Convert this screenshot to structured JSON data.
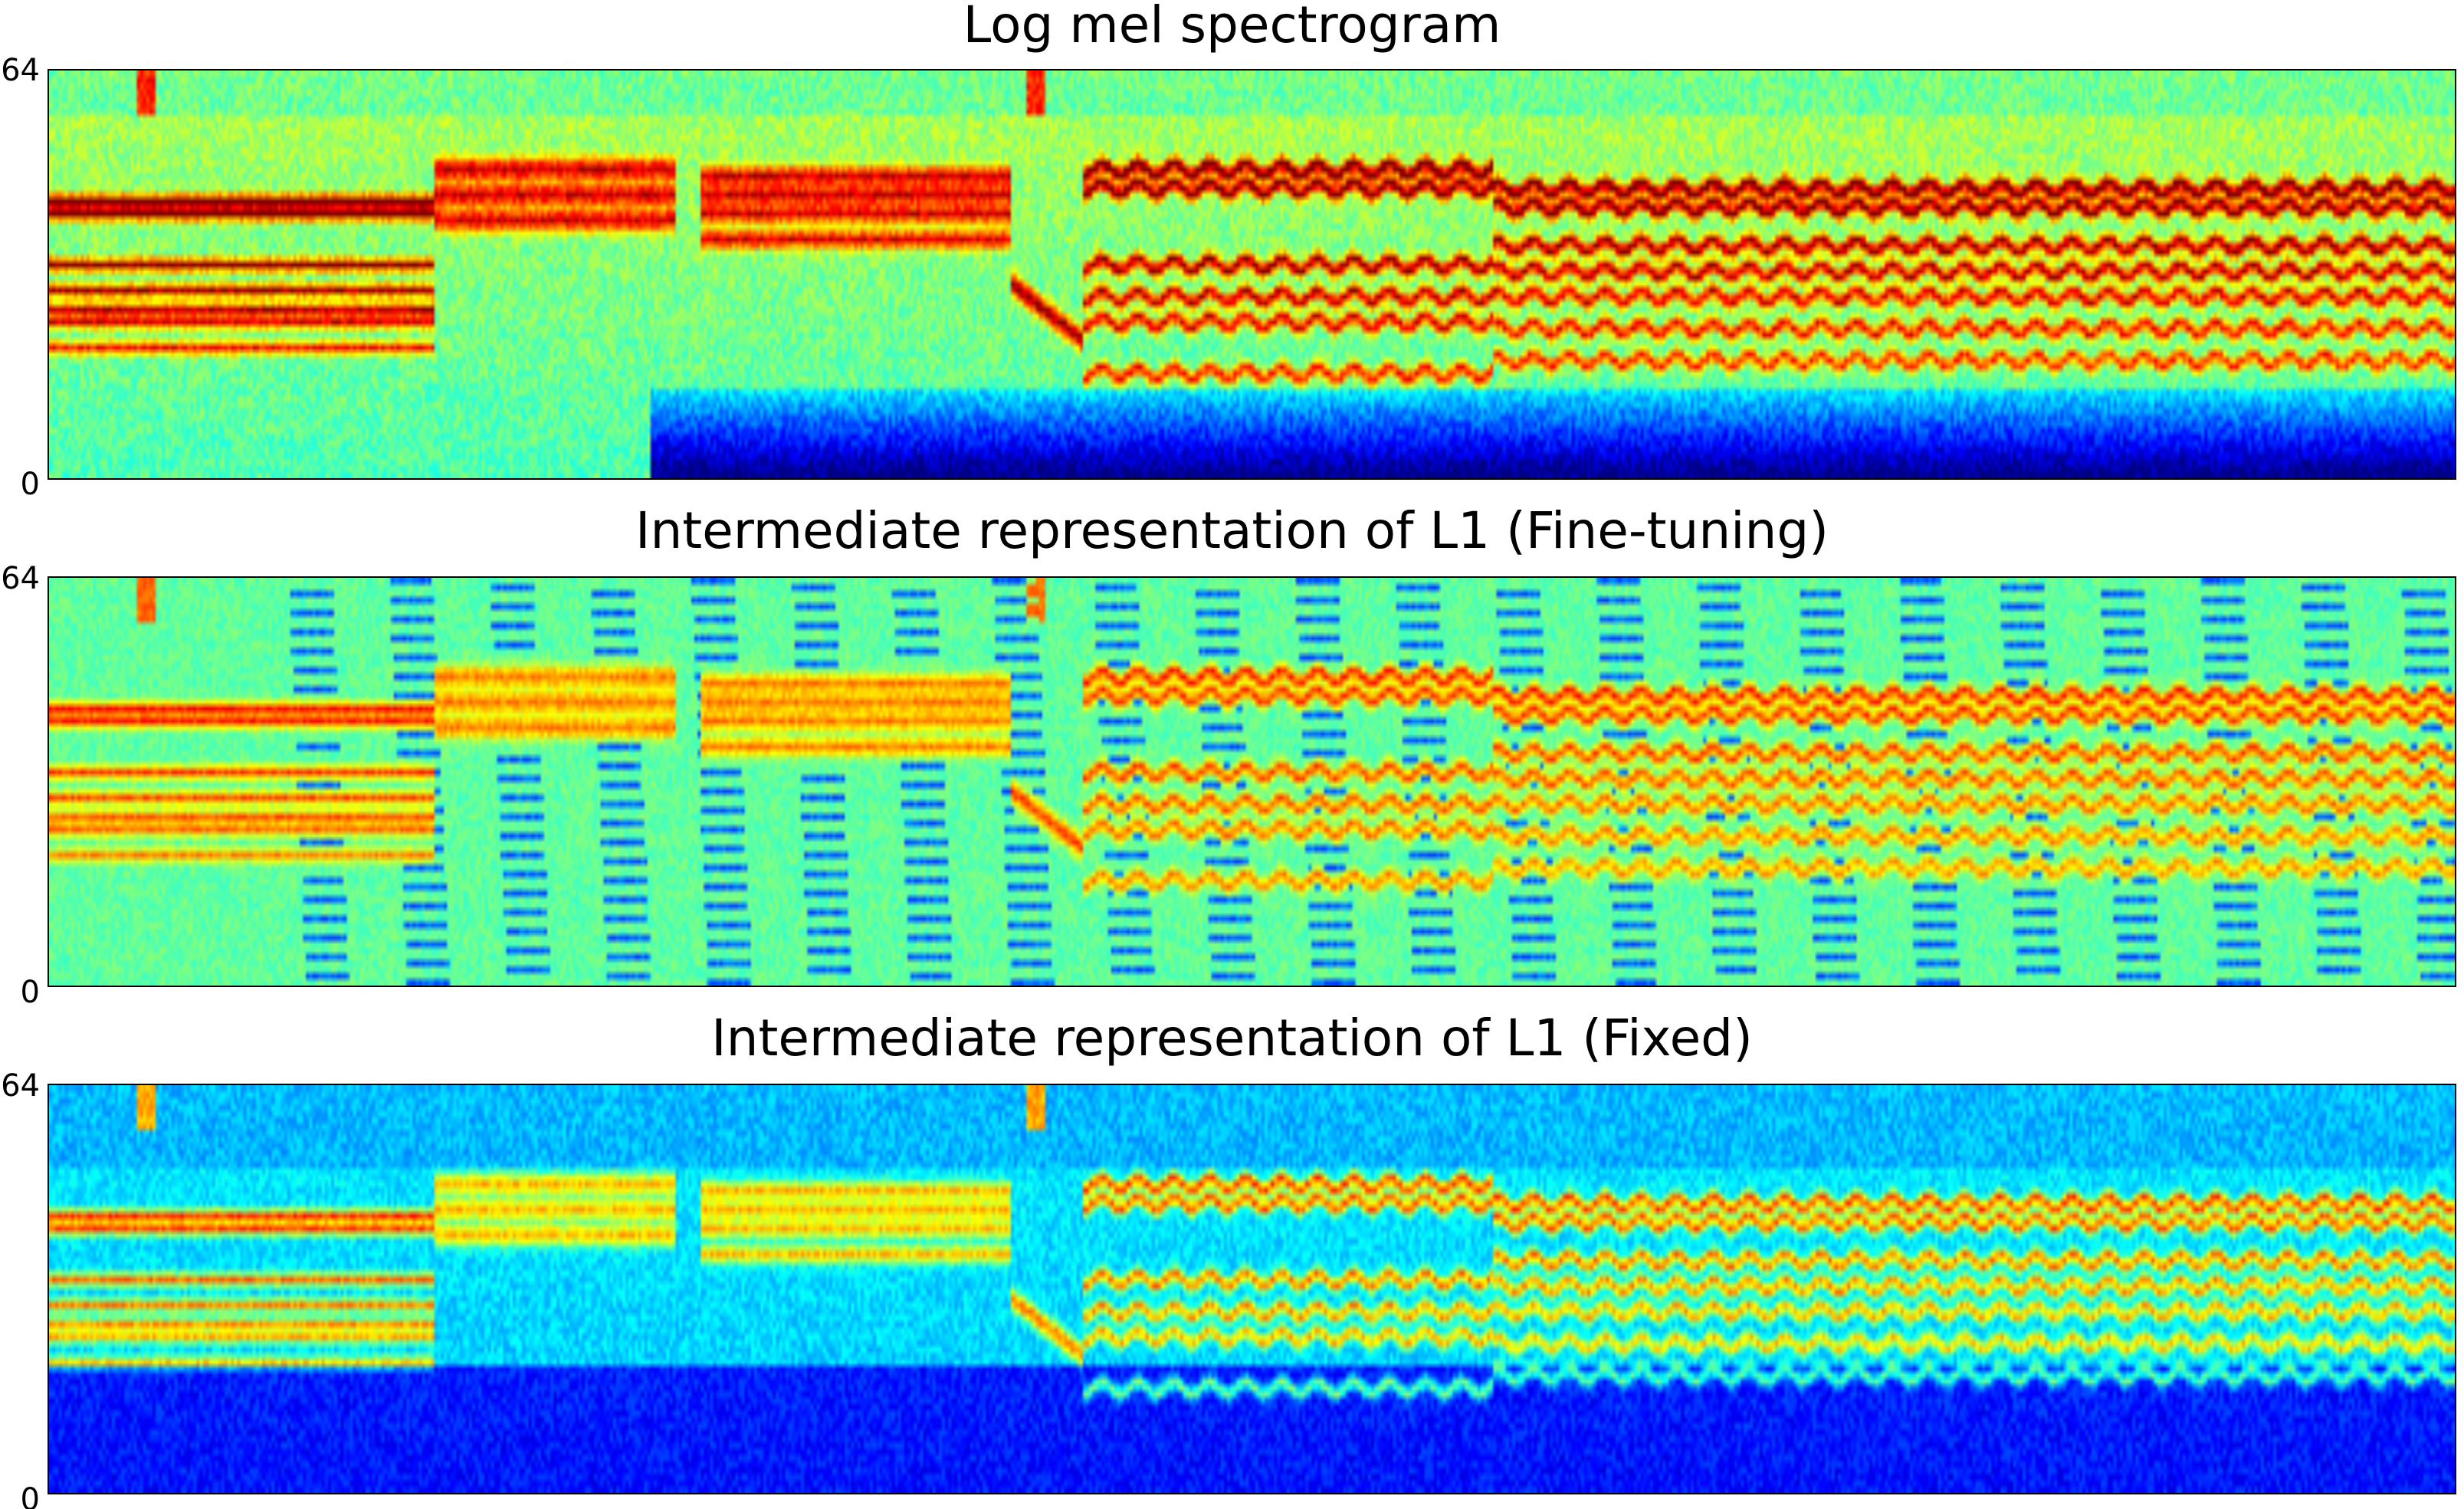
{
  "chart_data": [
    {
      "type": "heatmap",
      "title": "Log mel spectrogram",
      "ylim": [
        0,
        64
      ],
      "yticks": [
        "0",
        "64"
      ],
      "colormap": "jet",
      "variant": "logmel"
    },
    {
      "type": "heatmap",
      "title": "Intermediate representation of L1 (Fine-tuning)",
      "ylim": [
        0,
        64
      ],
      "yticks": [
        "0",
        "64"
      ],
      "colormap": "jet",
      "variant": "finetune"
    },
    {
      "type": "heatmap",
      "title": "Intermediate representation of L1 (Fixed)",
      "ylim": [
        0,
        64
      ],
      "yticks": [
        "0",
        "64"
      ],
      "colormap": "jet",
      "variant": "fixed"
    }
  ]
}
